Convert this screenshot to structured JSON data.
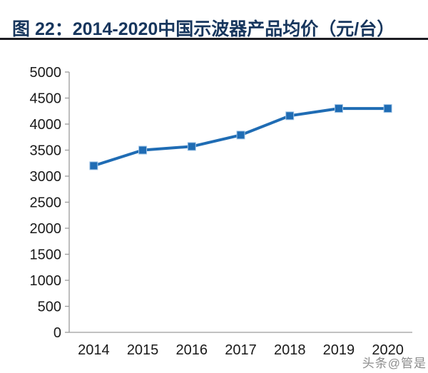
{
  "header": {
    "title": "图 22：2014-2020中国示波器产品均价（元/台）",
    "title_color": "#17365D",
    "rule_color": "#1C1C22"
  },
  "watermark": {
    "text": "头条@管是",
    "color": "#8C8C8C"
  },
  "chart_data": {
    "type": "line",
    "title": "图 22：2014-2020中国示波器产品均价（元/台）",
    "categories": [
      "2014",
      "2015",
      "2016",
      "2017",
      "2018",
      "2019",
      "2020"
    ],
    "values": [
      3200,
      3500,
      3570,
      3790,
      4160,
      4300,
      4300
    ],
    "xlabel": "",
    "ylabel": "",
    "ylim": [
      0,
      5000
    ],
    "ytick_step": 500,
    "ytick_labels": [
      "0",
      "500",
      "1000",
      "1500",
      "2000",
      "2500",
      "3000",
      "3500",
      "4000",
      "4500",
      "5000"
    ],
    "grid": false,
    "legend": false,
    "marker": "square",
    "colors": {
      "line": "#1F6CB4",
      "marker_fill": "#1F6CB4",
      "marker_edge": "#9DC3E6",
      "axis": "#9C9C9C",
      "tick_label": "#1A1A1A"
    }
  }
}
